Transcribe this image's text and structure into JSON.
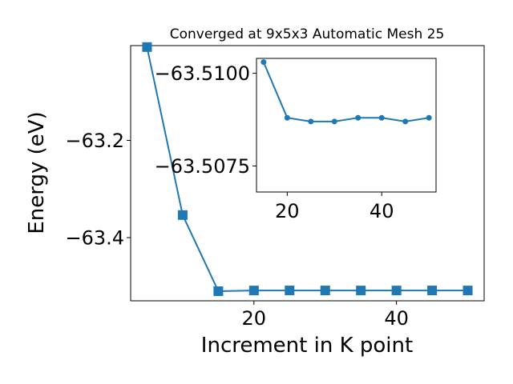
{
  "chart_data": [
    {
      "type": "line",
      "title": "Converged at 9x5x3 Automatic Mesh 25",
      "xlabel": "Increment in K point",
      "ylabel": "Energy (eV)",
      "xlim": [
        2.7,
        52.3
      ],
      "ylim": [
        -63.53,
        -63.005
      ],
      "xticks": [
        20,
        40
      ],
      "xtick_labels": [
        "20",
        "40"
      ],
      "yticks": [
        -63.2,
        -63.4
      ],
      "ytick_labels": [
        "−63.2",
        "−63.4"
      ],
      "grid": false,
      "line_color": "#1f77b4",
      "marker": "square",
      "series": [
        {
          "x": [
            5,
            10,
            15,
            20,
            25,
            30,
            35,
            40,
            45,
            50
          ],
          "y": [
            -63.008,
            -63.3536,
            -63.5103,
            -63.5088,
            -63.5087,
            -63.5087,
            -63.5088,
            -63.5088,
            -63.5087,
            -63.5088
          ]
        }
      ]
    },
    {
      "type": "line",
      "title": "",
      "xlim": [
        13.5,
        51.5
      ],
      "ylim": [
        -63.5068,
        -63.5104
      ],
      "xticks": [
        20,
        40
      ],
      "xtick_labels": [
        "20",
        "40"
      ],
      "yticks": [
        -63.51,
        -63.5075
      ],
      "ytick_labels": [
        "−63.5100",
        "−63.5075"
      ],
      "grid": false,
      "line_color": "#1f77b4",
      "marker": "circle",
      "series": [
        {
          "x": [
            15,
            20,
            25,
            30,
            35,
            40,
            45,
            50
          ],
          "y": [
            -63.5103,
            -63.5088,
            -63.5087,
            -63.5087,
            -63.5088,
            -63.5088,
            -63.5087,
            -63.5088
          ]
        }
      ]
    }
  ]
}
